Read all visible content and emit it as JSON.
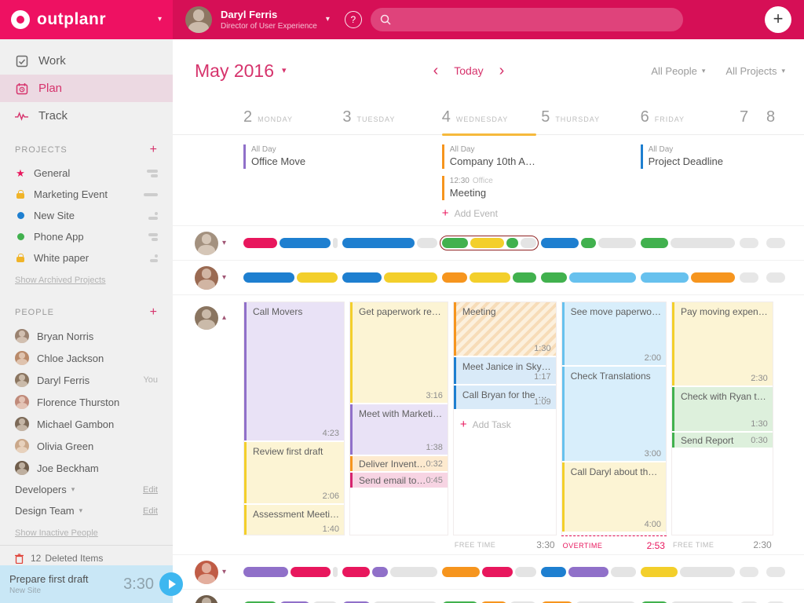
{
  "palette": {
    "pink": "#e8175d",
    "magenta": "#d6246e",
    "blue": "#1e7fd0",
    "lightblue": "#67c1ee",
    "yellow": "#f3cf2b",
    "orange": "#f6951e",
    "green": "#41b14e",
    "purple": "#9070c9",
    "gray": "#e4e4e4"
  },
  "palette_light": {
    "pink": "#fadce8",
    "magenta": "#f7d4e3",
    "blue": "#d9eaf8",
    "lightblue": "#d8eefb",
    "yellow": "#fcf4d4",
    "orange": "#fdeacf",
    "green": "#ddf0dc",
    "purple": "#e9e2f6",
    "gray": "#f0f0f0"
  },
  "avatar_colors": {
    "header": "#8d7763",
    "sidebar": [
      "#9a8270",
      "#b98a6a",
      "#8a7560",
      "#c08a7a",
      "#7c6a58",
      "#caa88a",
      "#6f5d4b"
    ]
  },
  "header": {
    "brand": "outplanr",
    "user_name": "Daryl Ferris",
    "user_title": "Director of User Experience",
    "help": "?",
    "add": "+",
    "search_placeholder": ""
  },
  "sidebar": {
    "nav": [
      {
        "label": "Work"
      },
      {
        "label": "Plan"
      },
      {
        "label": "Track"
      }
    ],
    "projects_title": "PROJECTS",
    "projects_add": "+",
    "projects": [
      {
        "name": "General",
        "icon": "star",
        "color": "#e8175d",
        "meta": [
          14,
          9
        ]
      },
      {
        "name": "Marketing Event",
        "icon": "lock",
        "color": "#f0b429",
        "meta": [
          18
        ]
      },
      {
        "name": "New Site",
        "icon": "dot",
        "color": "#1e7fd0",
        "meta": [
          4,
          12
        ]
      },
      {
        "name": "Phone App",
        "icon": "dot",
        "color": "#41b14e",
        "meta": [
          12,
          8
        ]
      },
      {
        "name": "White paper",
        "icon": "lock",
        "color": "#f0b429",
        "meta": [
          4,
          10
        ]
      }
    ],
    "show_archived": "Show Archived Projects",
    "people_title": "PEOPLE",
    "people_add": "+",
    "people": [
      {
        "name": "Bryan Norris"
      },
      {
        "name": "Chloe Jackson"
      },
      {
        "name": "Daryl Ferris",
        "badge": "You"
      },
      {
        "name": "Florence Thurston"
      },
      {
        "name": "Michael Gambon"
      },
      {
        "name": "Olivia Green"
      },
      {
        "name": "Joe Beckham"
      }
    ],
    "groups": [
      {
        "name": "Developers",
        "edit": "Edit"
      },
      {
        "name": "Design Team",
        "edit": "Edit"
      }
    ],
    "show_inactive": "Show Inactive People",
    "deleted_count": "12",
    "deleted_label": "Deleted Items",
    "timer": {
      "task": "Prepare first draft",
      "project": "New Site",
      "time": "3:30"
    }
  },
  "toolbar": {
    "month": "May 2016",
    "prev": "‹",
    "today": "Today",
    "next": "›",
    "people_filter": "All People",
    "projects_filter": "All Projects"
  },
  "calendar": {
    "days": [
      {
        "num": "2",
        "name": "MONDAY"
      },
      {
        "num": "3",
        "name": "TUESDAY"
      },
      {
        "num": "4",
        "name": "WEDNESDAY",
        "today": true
      },
      {
        "num": "5",
        "name": "THURSDAY"
      },
      {
        "num": "6",
        "name": "FRIDAY"
      },
      {
        "num": "7",
        "name": ""
      },
      {
        "num": "8",
        "name": ""
      }
    ],
    "allday_events": [
      {
        "day": 0,
        "tag": "All Day",
        "title": "Office Move",
        "color": "purple"
      },
      {
        "day": 2,
        "tag": "All Day",
        "title": "Company 10th A…",
        "color": "orange"
      },
      {
        "day": 2,
        "tag": "12:30",
        "place": "Office",
        "title": "Meeting",
        "color": "orange"
      },
      {
        "day": 4,
        "tag": "All Day",
        "title": "Project Deadline",
        "color": "blue"
      }
    ],
    "add_event": "Add Event",
    "add_task": "Add Task",
    "rows": [
      {
        "type": "bars",
        "avatar": "#a3917f",
        "highlight_day": 2,
        "days": [
          [
            [
              "pink",
              38
            ],
            [
              "blue",
              56
            ],
            [
              "gray",
              6
            ]
          ],
          [
            [
              "blue",
              78
            ],
            [
              "gray",
              22
            ]
          ],
          [
            [
              "green",
              30
            ],
            [
              "yellow",
              38
            ],
            [
              "green",
              14
            ],
            [
              "gray",
              18
            ]
          ],
          [
            [
              "blue",
              42
            ],
            [
              "green",
              16
            ],
            [
              "gray",
              42
            ]
          ],
          [
            [
              "green",
              30
            ],
            [
              "gray",
              70
            ]
          ]
        ]
      },
      {
        "type": "bars",
        "avatar": "#9a6a52",
        "days": [
          [
            [
              "blue",
              55
            ],
            [
              "yellow",
              45
            ]
          ],
          [
            [
              "blue",
              42
            ],
            [
              "yellow",
              58
            ]
          ],
          [
            [
              "orange",
              28
            ],
            [
              "yellow",
              46
            ],
            [
              "green",
              26
            ]
          ],
          [
            [
              "green",
              28
            ],
            [
              "lightblue",
              72
            ]
          ],
          [
            [
              "lightblue",
              52
            ],
            [
              "orange",
              48
            ]
          ]
        ]
      },
      {
        "type": "expanded",
        "avatar": "#8a7560",
        "columns": [
          {
            "tasks": [
              {
                "label": "Call Movers",
                "time": "4:23",
                "color": "purple",
                "h": 176
              },
              {
                "label": "Review first draft",
                "time": "2:06",
                "color": "yellow",
                "h": 78
              },
              {
                "label": "Assessment Meeti…",
                "time": "1:40",
                "color": "yellow",
                "h": 40
              }
            ]
          },
          {
            "tasks": [
              {
                "label": "Get paperwork re…",
                "time": "3:16",
                "color": "yellow",
                "h": 128
              },
              {
                "label": "Meet with Marketi…",
                "time": "1:38",
                "color": "purple",
                "h": 64
              },
              {
                "label": "Deliver Invent…",
                "time": "0:32",
                "color": "orange",
                "h": 19,
                "thin": true
              },
              {
                "label": "Send email to…",
                "time": "0:45",
                "color": "magenta",
                "h": 19,
                "thin": true
              }
            ]
          },
          {
            "tasks": [
              {
                "label": "Meeting",
                "time": "1:30",
                "color": "orange",
                "h": 68,
                "striped": true
              },
              {
                "label": "Meet Janice in Sky…",
                "time": "1:17",
                "color": "blue",
                "h": 34
              },
              {
                "label": "Call Bryan for the …",
                "time": "1:09",
                "color": "blue",
                "h": 30
              },
              {
                "add": true
              }
            ],
            "footer": {
              "label": "FREE TIME",
              "time": "3:30"
            }
          },
          {
            "tasks": [
              {
                "label": "See move paperwo…",
                "time": "2:00",
                "color": "lightblue",
                "h": 80
              },
              {
                "label": "Check Translations",
                "time": "3:00",
                "color": "lightblue",
                "h": 120
              },
              {
                "label": "Call Daryl about th…",
                "time": "4:00",
                "color": "yellow",
                "h": 88
              }
            ],
            "footer": {
              "label": "OVERTIME",
              "time": "2:53",
              "overtime": true
            }
          },
          {
            "tasks": [
              {
                "label": "Pay moving expen…",
                "time": "2:30",
                "color": "yellow",
                "h": 106
              },
              {
                "label": "Check with Ryan t…",
                "time": "1:30",
                "color": "green",
                "h": 56
              },
              {
                "label": "Send Report",
                "time": "0:30",
                "color": "green",
                "h": 19,
                "thin": true
              }
            ],
            "footer": {
              "label": "FREE TIME",
              "time": "2:30"
            }
          }
        ]
      },
      {
        "type": "bars",
        "avatar": "#c05c46",
        "days": [
          [
            [
              "purple",
              50
            ],
            [
              "pink",
              45
            ],
            [
              "gray",
              5
            ]
          ],
          [
            [
              "pink",
              30
            ],
            [
              "purple",
              18
            ],
            [
              "gray",
              52
            ]
          ],
          [
            [
              "orange",
              42
            ],
            [
              "pink",
              34
            ],
            [
              "gray",
              24
            ]
          ],
          [
            [
              "blue",
              28
            ],
            [
              "purple",
              44
            ],
            [
              "gray",
              28
            ]
          ],
          [
            [
              "yellow",
              40
            ],
            [
              "gray",
              60
            ]
          ]
        ]
      },
      {
        "type": "bars",
        "avatar": "#6f5d4b",
        "days": [
          [
            [
              "green",
              38
            ],
            [
              "purple",
              34
            ],
            [
              "gray",
              28
            ]
          ],
          [
            [
              "purple",
              30
            ],
            [
              "gray",
              70
            ]
          ],
          [
            [
              "green",
              40
            ],
            [
              "orange",
              30
            ],
            [
              "gray",
              30
            ]
          ],
          [
            [
              "orange",
              35
            ],
            [
              "gray",
              65
            ]
          ],
          [
            [
              "green",
              30
            ],
            [
              "gray",
              70
            ]
          ]
        ]
      }
    ]
  }
}
